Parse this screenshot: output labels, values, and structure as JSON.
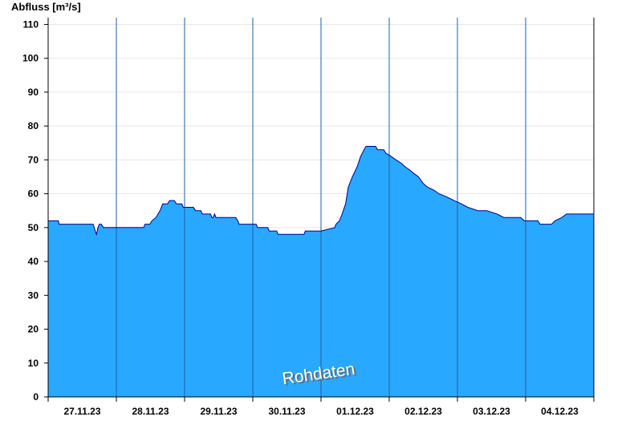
{
  "chart_data": {
    "type": "area",
    "ylabel": "Abfluss [m³/s]",
    "watermark": "Rohdaten",
    "ylim": [
      0,
      112
    ],
    "yticks": [
      0,
      10,
      20,
      30,
      40,
      50,
      60,
      70,
      80,
      90,
      100,
      110
    ],
    "xlim_days": 8,
    "day_labels": [
      "27.11.23",
      "28.11.23",
      "29.11.23",
      "30.11.23",
      "01.12.23",
      "02.12.23",
      "03.12.23",
      "04.12.23"
    ],
    "grid": "horizontal lines at y ticks, vertical lines at day boundaries",
    "fill_color": "#29a8ff",
    "line_color": "#00008b",
    "series": [
      {
        "points": [
          [
            0.0,
            52
          ],
          [
            0.15,
            52
          ],
          [
            0.16,
            51
          ],
          [
            0.4,
            51
          ],
          [
            0.5,
            51
          ],
          [
            0.66,
            51
          ],
          [
            0.69,
            49
          ],
          [
            0.71,
            48
          ],
          [
            0.73,
            50
          ],
          [
            0.75,
            51
          ],
          [
            0.78,
            51
          ],
          [
            0.81,
            50
          ],
          [
            0.9,
            50
          ],
          [
            1.0,
            50
          ],
          [
            1.2,
            50
          ],
          [
            1.4,
            50
          ],
          [
            1.42,
            51
          ],
          [
            1.49,
            51
          ],
          [
            1.52,
            52
          ],
          [
            1.58,
            53
          ],
          [
            1.64,
            55
          ],
          [
            1.68,
            57
          ],
          [
            1.75,
            57
          ],
          [
            1.78,
            58
          ],
          [
            1.85,
            58
          ],
          [
            1.88,
            57
          ],
          [
            1.96,
            57
          ],
          [
            1.98,
            56
          ],
          [
            2.13,
            56
          ],
          [
            2.16,
            55
          ],
          [
            2.24,
            55
          ],
          [
            2.26,
            54
          ],
          [
            2.38,
            54
          ],
          [
            2.4,
            53
          ],
          [
            2.42,
            53
          ],
          [
            2.44,
            54
          ],
          [
            2.46,
            53
          ],
          [
            2.75,
            53
          ],
          [
            2.78,
            52
          ],
          [
            2.8,
            51
          ],
          [
            3.0,
            51
          ],
          [
            3.05,
            51
          ],
          [
            3.07,
            50
          ],
          [
            3.22,
            50
          ],
          [
            3.24,
            49
          ],
          [
            3.35,
            49
          ],
          [
            3.37,
            48
          ],
          [
            3.75,
            48
          ],
          [
            3.77,
            49
          ],
          [
            4.0,
            49
          ],
          [
            4.2,
            50
          ],
          [
            4.22,
            51
          ],
          [
            4.27,
            52
          ],
          [
            4.31,
            54
          ],
          [
            4.36,
            57
          ],
          [
            4.4,
            62
          ],
          [
            4.46,
            65
          ],
          [
            4.53,
            68
          ],
          [
            4.58,
            71
          ],
          [
            4.63,
            73
          ],
          [
            4.66,
            74
          ],
          [
            4.8,
            74
          ],
          [
            4.83,
            73
          ],
          [
            4.92,
            73
          ],
          [
            4.95,
            72
          ],
          [
            5.03,
            71
          ],
          [
            5.1,
            70
          ],
          [
            5.18,
            69
          ],
          [
            5.23,
            68
          ],
          [
            5.3,
            67
          ],
          [
            5.36,
            66
          ],
          [
            5.43,
            65
          ],
          [
            5.5,
            63
          ],
          [
            5.56,
            62
          ],
          [
            5.66,
            61
          ],
          [
            5.73,
            60
          ],
          [
            5.85,
            59
          ],
          [
            5.95,
            58
          ],
          [
            6.06,
            57
          ],
          [
            6.15,
            56
          ],
          [
            6.3,
            55
          ],
          [
            6.43,
            55
          ],
          [
            6.58,
            54
          ],
          [
            6.68,
            53
          ],
          [
            6.93,
            53
          ],
          [
            6.98,
            52
          ],
          [
            7.18,
            52
          ],
          [
            7.21,
            51
          ],
          [
            7.38,
            51
          ],
          [
            7.43,
            52
          ],
          [
            7.53,
            53
          ],
          [
            7.6,
            54
          ],
          [
            8.0,
            54
          ]
        ]
      }
    ]
  }
}
